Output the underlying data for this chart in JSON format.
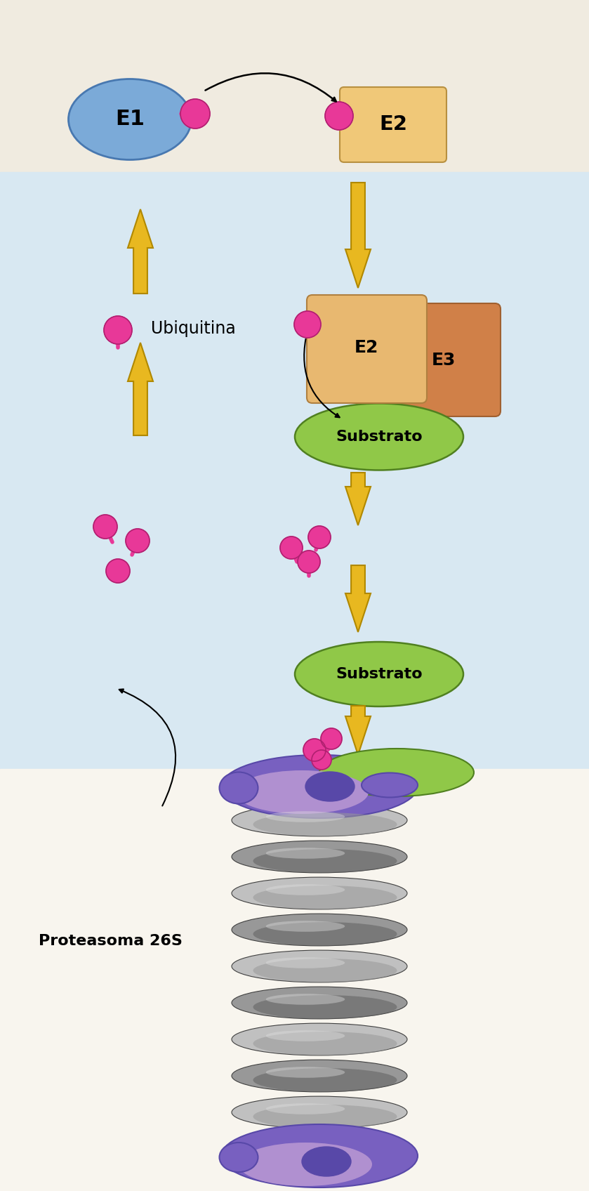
{
  "bg_color_top": "#f0ebe0",
  "bg_color_panel": "#d8e8f2",
  "bg_color_bottom": "#f8f5ee",
  "e1_color": "#7baad8",
  "e1_edge": "#4878b0",
  "e2_top_color": "#f0c878",
  "e2_top_edge": "#b89040",
  "e2_mid_color": "#e8b870",
  "e2_mid_edge": "#b08040",
  "e3_color": "#d08048",
  "e3_edge": "#a06030",
  "ubiquitin_color": "#e83898",
  "ubiquitin_edge": "#b02070",
  "substrato_color": "#90c848",
  "substrato_edge": "#508020",
  "arrow_color": "#e8b820",
  "arrow_edge": "#b08800",
  "proteasome_purple_dark": "#5848a8",
  "proteasome_purple_mid": "#7860c0",
  "proteasome_purple_light": "#b090d0",
  "proteasome_gray_light": "#c0c0c0",
  "proteasome_gray_mid": "#989898",
  "proteasome_gray_dark": "#606060",
  "label_e1": "E1",
  "label_e2": "E2",
  "label_e3": "E3",
  "label_substrato": "Substrato",
  "label_ubiquitina": "Ubiquitina",
  "label_proteasoma": "Proteasoma 26S"
}
